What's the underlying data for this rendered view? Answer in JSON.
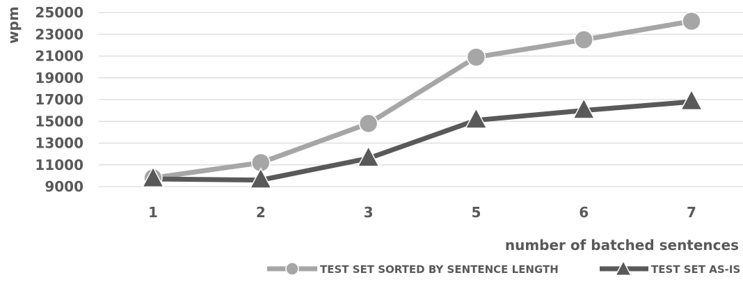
{
  "chart_data": {
    "type": "line",
    "title": "",
    "xlabel": "number of batched sentences",
    "ylabel": "wpm",
    "categories": [
      "1",
      "2",
      "3",
      "5",
      "6",
      "7"
    ],
    "ylim": [
      9000,
      25000
    ],
    "yticks": [
      9000,
      11000,
      13000,
      15000,
      17000,
      19000,
      21000,
      23000,
      25000
    ],
    "grid": "horizontal",
    "legend_position": "bottom",
    "series": [
      {
        "name": "TEST SET SORTED BY SENTENCE LENGTH",
        "marker": "circle",
        "color": "#a6a6a6",
        "values": [
          9800,
          11200,
          14800,
          20900,
          22500,
          24200
        ]
      },
      {
        "name": "TEST SET AS-IS",
        "marker": "triangle",
        "color": "#595959",
        "values": [
          9700,
          9600,
          11600,
          15100,
          16000,
          16800
        ]
      }
    ]
  },
  "colors": {
    "grid": "#d9d9d9",
    "text": "#595959"
  }
}
